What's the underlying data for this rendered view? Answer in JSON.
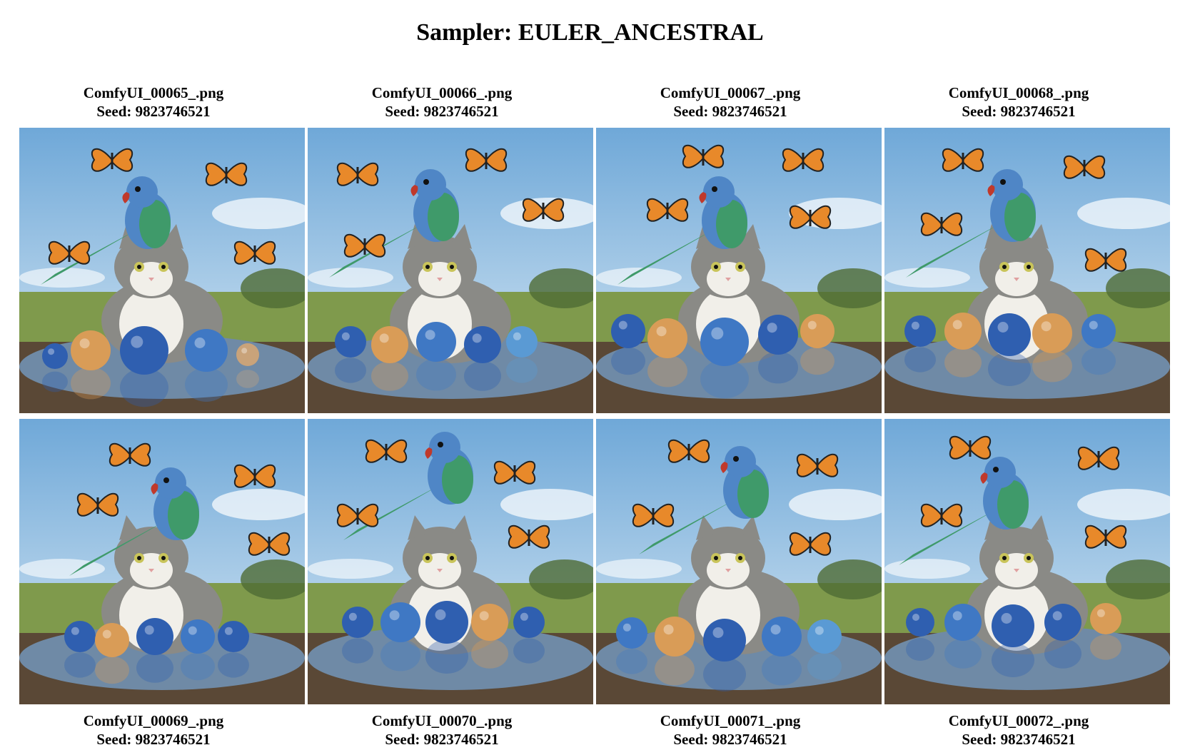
{
  "title": "Sampler: EULER_ANCESTRAL",
  "images": [
    {
      "filename": "ComfyUI_00065_.png",
      "seed": "Seed: 9823746521"
    },
    {
      "filename": "ComfyUI_00066_.png",
      "seed": "Seed: 9823746521"
    },
    {
      "filename": "ComfyUI_00067_.png",
      "seed": "Seed: 9823746521"
    },
    {
      "filename": "ComfyUI_00068_.png",
      "seed": "Seed: 9823746521"
    },
    {
      "filename": "ComfyUI_00069_.png",
      "seed": "Seed: 9823746521"
    },
    {
      "filename": "ComfyUI_00070_.png",
      "seed": "Seed: 9823746521"
    },
    {
      "filename": "ComfyUI_00071_.png",
      "seed": "Seed: 9823746521"
    },
    {
      "filename": "ComfyUI_00072_.png",
      "seed": "Seed: 9823746521"
    }
  ],
  "colors": {
    "sky_top": "#6fa8d8",
    "sky_bottom": "#d9e9f4",
    "grass": "#7f9a4c",
    "puddle": "#6f8aa6",
    "mud": "#5a4836",
    "parrot": "#4f86c6",
    "parrot_wing": "#3f9a6a",
    "cat_fur": "#8a8a86",
    "cat_white": "#f1efe9",
    "butterfly": "#e8892a"
  }
}
